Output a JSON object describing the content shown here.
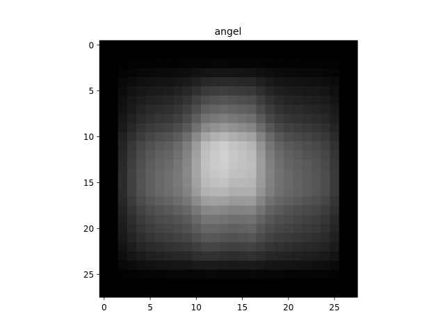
{
  "chart_data": {
    "type": "heatmap",
    "title": "angel",
    "xlabel": "",
    "ylabel": "",
    "colormap": "gray",
    "shape": [
      28,
      28
    ],
    "xlim": [
      -0.5,
      27.5
    ],
    "ylim": [
      27.5,
      -0.5
    ],
    "xticks": [
      0,
      5,
      10,
      15,
      20,
      25
    ],
    "yticks": [
      0,
      5,
      10,
      15,
      20,
      25
    ],
    "grid": false,
    "xtick_labels": [
      "0",
      "5",
      "10",
      "15",
      "20",
      "25"
    ],
    "ytick_labels": [
      "0",
      "5",
      "10",
      "15",
      "20",
      "25"
    ],
    "band_scale": [
      0,
      0,
      4,
      14,
      26,
      36,
      46,
      54,
      62,
      72,
      84,
      94,
      98,
      100,
      100,
      98,
      94,
      84,
      72,
      62,
      54,
      46,
      36,
      26,
      14,
      4,
      0,
      0
    ],
    "column_scale": [
      0,
      0,
      28,
      42,
      54,
      62,
      68,
      72,
      76,
      80,
      90,
      98,
      96,
      92,
      88,
      92,
      96,
      86,
      76,
      72,
      68,
      64,
      60,
      56,
      50,
      38,
      0,
      0
    ],
    "figure_peak": 250,
    "base_tone": 210,
    "top_tone": 90
  }
}
